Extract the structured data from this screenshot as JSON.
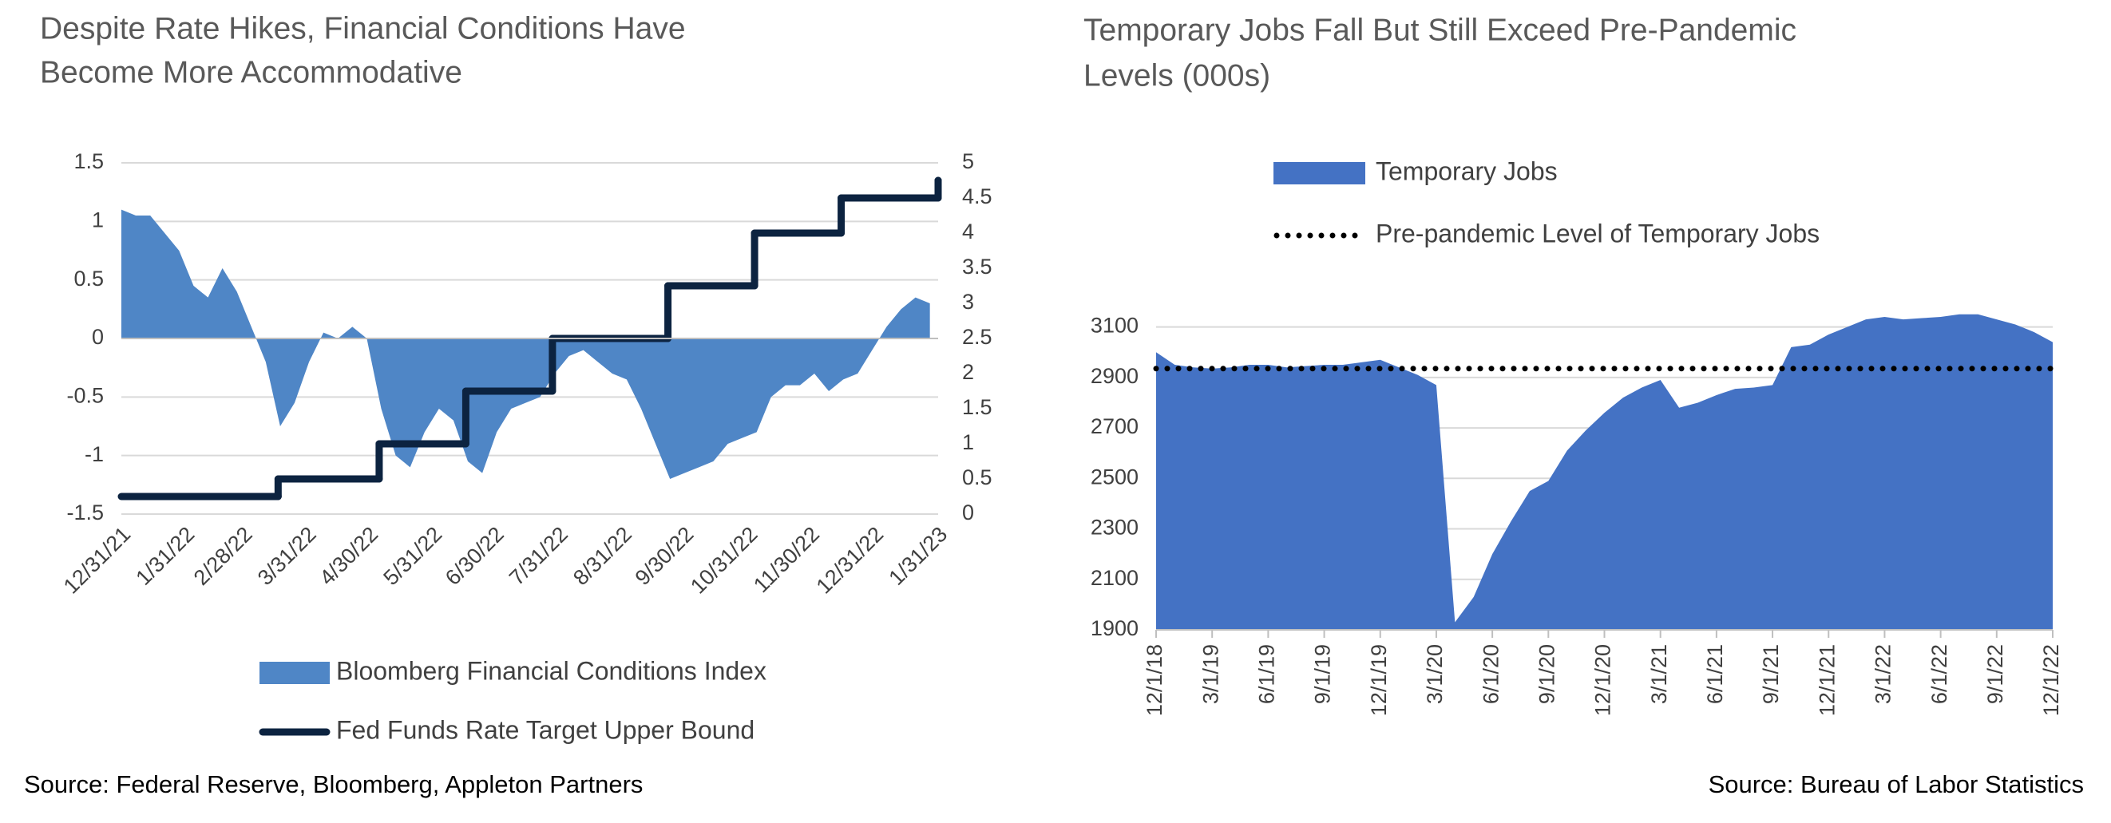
{
  "chart_data": [
    {
      "type": "area",
      "title": [
        "Despite Rate Hikes, Financial Conditions Have",
        "Become More Accommodative"
      ],
      "source": "Source: Federal Reserve, Bloomberg, Appleton Partners",
      "legend": "bottom",
      "grid": true,
      "x": [
        "2021-12-31",
        "2022-01-07",
        "2022-01-14",
        "2022-01-21",
        "2022-01-28",
        "2022-02-04",
        "2022-02-11",
        "2022-02-18",
        "2022-02-25",
        "2022-03-04",
        "2022-03-11",
        "2022-03-18",
        "2022-03-25",
        "2022-04-01",
        "2022-04-08",
        "2022-04-15",
        "2022-04-22",
        "2022-04-29",
        "2022-05-06",
        "2022-05-13",
        "2022-05-20",
        "2022-05-27",
        "2022-06-03",
        "2022-06-10",
        "2022-06-17",
        "2022-06-24",
        "2022-07-01",
        "2022-07-08",
        "2022-07-15",
        "2022-07-22",
        "2022-07-29",
        "2022-08-05",
        "2022-08-12",
        "2022-08-19",
        "2022-08-26",
        "2022-09-02",
        "2022-09-09",
        "2022-09-16",
        "2022-09-23",
        "2022-09-30",
        "2022-10-07",
        "2022-10-14",
        "2022-10-21",
        "2022-10-28",
        "2022-11-04",
        "2022-11-11",
        "2022-11-18",
        "2022-11-25",
        "2022-12-02",
        "2022-12-09",
        "2022-12-16",
        "2022-12-23",
        "2022-12-30",
        "2023-01-06",
        "2023-01-13",
        "2023-01-20",
        "2023-01-27"
      ],
      "series": [
        {
          "name": "Bloomberg Financial Conditions Index",
          "color": "#4f86c6",
          "values": [
            1.1,
            1.05,
            1.05,
            0.9,
            0.75,
            0.45,
            0.35,
            0.6,
            0.4,
            0.1,
            -0.2,
            -0.75,
            -0.55,
            -0.2,
            0.05,
            0,
            0.1,
            0,
            -0.6,
            -1,
            -1.1,
            -0.8,
            -0.6,
            -0.7,
            -1.05,
            -1.15,
            -0.8,
            -0.6,
            -0.55,
            -0.5,
            -0.3,
            -0.15,
            -0.1,
            -0.2,
            -0.3,
            -0.35,
            -0.6,
            -0.9,
            -1.2,
            -1.15,
            -1.1,
            -1.05,
            -0.9,
            -0.85,
            -0.8,
            -0.5,
            -0.4,
            -0.4,
            -0.3,
            -0.45,
            -0.35,
            -0.3,
            -0.1,
            0.1,
            0.25,
            0.35,
            0.3
          ]
        },
        {
          "name": "Fed Funds Rate Target Upper Bound",
          "color": "#0c2340",
          "axis": "y2",
          "type": "step",
          "x": [
            "2021-12-31",
            "2022-03-17",
            "2022-05-05",
            "2022-06-16",
            "2022-07-28",
            "2022-09-22",
            "2022-11-03",
            "2022-12-15",
            "2023-01-31"
          ],
          "values": [
            0.25,
            0.5,
            1,
            1.75,
            2.5,
            3.25,
            4,
            4.5,
            4.75
          ]
        }
      ],
      "xlim": [
        "2021-12-31",
        "2023-01-31"
      ],
      "xticks": [
        {
          "value": "2021-12-31",
          "label": "12/31/21"
        },
        {
          "value": "2022-01-31",
          "label": "1/31/22"
        },
        {
          "value": "2022-02-28",
          "label": "2/28/22"
        },
        {
          "value": "2022-03-31",
          "label": "3/31/22"
        },
        {
          "value": "2022-04-30",
          "label": "4/30/22"
        },
        {
          "value": "2022-05-31",
          "label": "5/31/22"
        },
        {
          "value": "2022-06-30",
          "label": "6/30/22"
        },
        {
          "value": "2022-07-31",
          "label": "7/31/22"
        },
        {
          "value": "2022-08-31",
          "label": "8/31/22"
        },
        {
          "value": "2022-09-30",
          "label": "9/30/22"
        },
        {
          "value": "2022-10-31",
          "label": "10/31/22"
        },
        {
          "value": "2022-11-30",
          "label": "11/30/22"
        },
        {
          "value": "2022-12-31",
          "label": "12/31/22"
        },
        {
          "value": "2023-01-31",
          "label": "1/31/23"
        }
      ],
      "ylim": [
        -1.5,
        1.5
      ],
      "yticks": [
        -1.5,
        -1,
        -0.5,
        0,
        0.5,
        1,
        1.5
      ],
      "y2lim": [
        0,
        5
      ],
      "y2ticks": [
        0,
        0.5,
        1,
        1.5,
        2,
        2.5,
        3,
        3.5,
        4,
        4.5,
        5
      ]
    },
    {
      "type": "area",
      "title": [
        "Temporary Jobs Fall But Still Exceed Pre-Pandemic",
        "Levels (000s)"
      ],
      "source": "Source: Bureau of Labor Statistics",
      "legend": "top",
      "grid": true,
      "categories": [
        "12/1/18",
        null,
        null,
        "3/1/19",
        null,
        null,
        "6/1/19",
        null,
        null,
        "9/1/19",
        null,
        null,
        "12/1/19",
        null,
        null,
        "3/1/20",
        null,
        null,
        "6/1/20",
        null,
        null,
        "9/1/20",
        null,
        null,
        "12/1/20",
        null,
        null,
        "3/1/21",
        null,
        null,
        "6/1/21",
        null,
        null,
        "9/1/21",
        null,
        null,
        "12/1/21",
        null,
        null,
        "3/1/22",
        null,
        null,
        "6/1/22",
        null,
        null,
        "9/1/22",
        null,
        null,
        "12/1/22"
      ],
      "series": [
        {
          "name": "Temporary Jobs",
          "color": "#4472c4",
          "values": [
            3000,
            2950,
            2940,
            2935,
            2940,
            2950,
            2950,
            2940,
            2945,
            2950,
            2950,
            2960,
            2970,
            2940,
            2910,
            2870,
            1930,
            2030,
            2200,
            2330,
            2450,
            2490,
            2610,
            2690,
            2760,
            2820,
            2860,
            2890,
            2780,
            2800,
            2830,
            2855,
            2860,
            2870,
            3020,
            3030,
            3070,
            3100,
            3130,
            3140,
            3130,
            3135,
            3140,
            3150,
            3150,
            3130,
            3110,
            3080,
            3040
          ]
        },
        {
          "name": "Pre-pandemic Level of Temporary Jobs",
          "color": "#000000",
          "type": "reference",
          "value": 2935
        }
      ],
      "ylim": [
        1900,
        3200
      ],
      "yticks": [
        1900,
        2100,
        2300,
        2500,
        2700,
        2900,
        3100
      ]
    }
  ]
}
